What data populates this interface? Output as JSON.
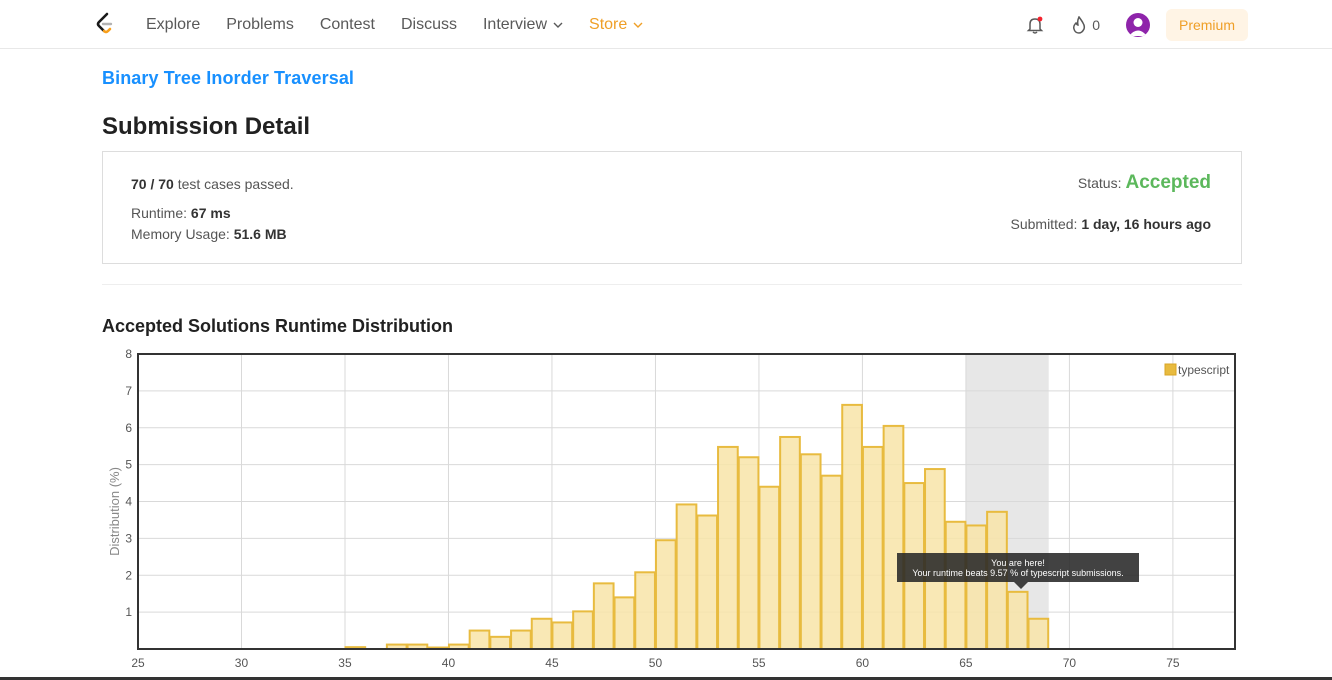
{
  "nav": {
    "links": [
      {
        "label": "Explore"
      },
      {
        "label": "Problems"
      },
      {
        "label": "Contest"
      },
      {
        "label": "Discuss"
      },
      {
        "label": "Interview"
      },
      {
        "label": "Store"
      }
    ],
    "streak_count": "0",
    "premium_label": "Premium",
    "colors": {
      "store": "#ef9f27",
      "premium_bg": "#fff4e5",
      "avatar": "#8e24aa"
    }
  },
  "problem": {
    "title": "Binary Tree Inorder Traversal"
  },
  "page_title": "Submission Detail",
  "submission": {
    "passed": "70 / 70",
    "passed_suffix": " test cases passed.",
    "runtime_label": "Runtime: ",
    "runtime_value": "67 ms",
    "memory_label": "Memory Usage: ",
    "memory_value": "51.6 MB",
    "status_label": "Status:",
    "status_value": "Accepted",
    "submitted_label": "Submitted: ",
    "submitted_value": "1 day, 16 hours ago",
    "colors": {
      "accepted": "#5cb85c"
    }
  },
  "chart_heading": "Accepted Solutions Runtime Distribution",
  "tooltip": {
    "line1": "You are here!",
    "line2": "Your runtime beats 9.57 % of typescript submissions."
  },
  "chart_data": {
    "type": "bar",
    "xlabel": "",
    "ylabel": "Distribution (%)",
    "xlim": [
      25,
      78
    ],
    "ylim": [
      0,
      8
    ],
    "x_ticks": [
      25,
      30,
      35,
      40,
      45,
      50,
      55,
      60,
      65,
      70,
      75
    ],
    "y_ticks": [
      1,
      2,
      3,
      4,
      5,
      6,
      7,
      8
    ],
    "bin_width": 1,
    "highlight_range": [
      65,
      69
    ],
    "legend": {
      "label": "typescript",
      "placement": "top-right"
    },
    "colors": {
      "bar_fill": "#f8e4a8",
      "bar_stroke": "#e8bb3f",
      "highlight": "#e7e7e7",
      "legend": "#e8bb3f"
    },
    "series": [
      {
        "name": "typescript",
        "bins": [
          {
            "x": 35,
            "y": 0.05
          },
          {
            "x": 37,
            "y": 0.12
          },
          {
            "x": 38,
            "y": 0.12
          },
          {
            "x": 39,
            "y": 0.04
          },
          {
            "x": 40,
            "y": 0.12
          },
          {
            "x": 41,
            "y": 0.5
          },
          {
            "x": 42,
            "y": 0.33
          },
          {
            "x": 43,
            "y": 0.5
          },
          {
            "x": 44,
            "y": 0.82
          },
          {
            "x": 45,
            "y": 0.72
          },
          {
            "x": 46,
            "y": 1.02
          },
          {
            "x": 47,
            "y": 1.78
          },
          {
            "x": 48,
            "y": 1.4
          },
          {
            "x": 49,
            "y": 2.08
          },
          {
            "x": 50,
            "y": 2.95
          },
          {
            "x": 51,
            "y": 3.92
          },
          {
            "x": 52,
            "y": 3.62
          },
          {
            "x": 53,
            "y": 5.48
          },
          {
            "x": 54,
            "y": 5.2
          },
          {
            "x": 55,
            "y": 4.4
          },
          {
            "x": 56,
            "y": 5.75
          },
          {
            "x": 57,
            "y": 5.28
          },
          {
            "x": 58,
            "y": 4.7
          },
          {
            "x": 59,
            "y": 6.62
          },
          {
            "x": 60,
            "y": 5.48
          },
          {
            "x": 61,
            "y": 6.05
          },
          {
            "x": 62,
            "y": 4.5
          },
          {
            "x": 63,
            "y": 4.88
          },
          {
            "x": 64,
            "y": 3.45
          },
          {
            "x": 65,
            "y": 3.35
          },
          {
            "x": 66,
            "y": 3.72
          },
          {
            "x": 67,
            "y": 1.55
          },
          {
            "x": 68,
            "y": 0.82
          }
        ]
      }
    ]
  }
}
